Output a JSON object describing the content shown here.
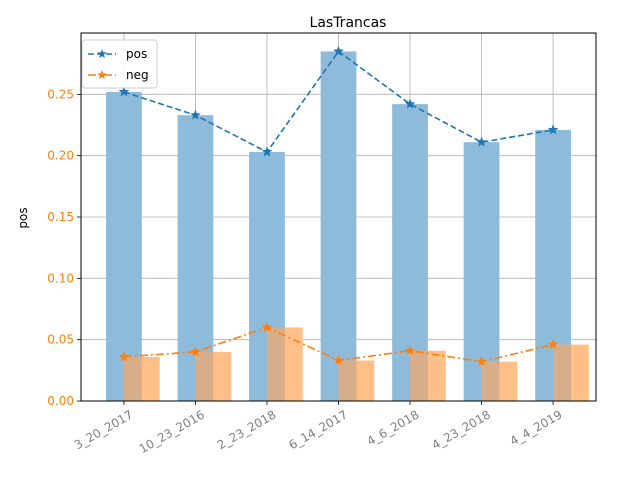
{
  "chart_data": {
    "type": "bar",
    "title": "LasTrancas",
    "xlabel": "",
    "ylabel": "pos",
    "ylim": [
      0,
      0.3
    ],
    "yticks": [
      "0.00",
      "0.05",
      "0.10",
      "0.15",
      "0.20",
      "0.25"
    ],
    "categories": [
      "3_20_2017",
      "10_23_2016",
      "2_23_2018",
      "6_14_2017",
      "4_6_2018",
      "4_23_2018",
      "4_4_2019"
    ],
    "grid": true,
    "legend_position": "upper-left",
    "series": [
      {
        "name": "pos",
        "values": [
          0.252,
          0.233,
          0.203,
          0.285,
          0.242,
          0.211,
          0.221
        ],
        "bar_color": "#8fbbdb",
        "line_color": "#1f77b4",
        "line_style": "dashed",
        "marker": "star"
      },
      {
        "name": "neg",
        "values": [
          0.036,
          0.04,
          0.06,
          0.033,
          0.041,
          0.032,
          0.046
        ],
        "bar_color": "#ffbf86",
        "line_color": "#ff7f0e",
        "line_style": "dashdot",
        "marker": "star"
      }
    ],
    "tick_label_colors": {
      "x": "#808080",
      "y": "#ff7f0e"
    }
  }
}
